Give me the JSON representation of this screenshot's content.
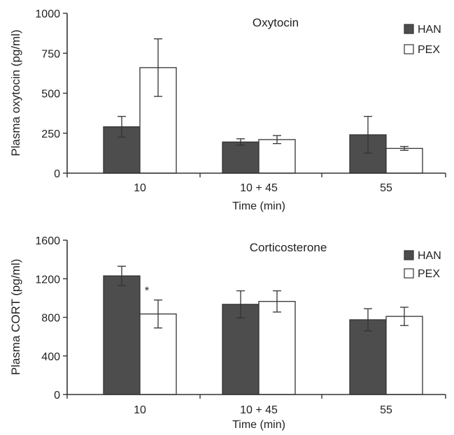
{
  "chart_data": [
    {
      "type": "bar",
      "title": "Oxytocin",
      "xlabel": "Time (min)",
      "ylabel": "Plasma oxytocin (pg/ml)",
      "categories": [
        "10",
        "10 + 45",
        "55"
      ],
      "yticks": [
        "0",
        "250",
        "500",
        "750",
        "1000"
      ],
      "ylim": [
        0,
        1000
      ],
      "series": [
        {
          "name": "HAN",
          "color": "#4d4d4d",
          "values": [
            290,
            195,
            240
          ],
          "errors": [
            65,
            20,
            115
          ]
        },
        {
          "name": "PEX",
          "color": "#ffffff",
          "values": [
            660,
            210,
            155
          ],
          "errors": [
            180,
            25,
            12
          ]
        }
      ],
      "annotations": [],
      "legend": "top-right",
      "grid": false
    },
    {
      "type": "bar",
      "title": "Corticosterone",
      "xlabel": "Time (min)",
      "ylabel": "Plasma CORT (pg/ml)",
      "categories": [
        "10",
        "10 + 45",
        "55"
      ],
      "yticks": [
        "0",
        "400",
        "800",
        "1200",
        "1600"
      ],
      "ylim": [
        0,
        1600
      ],
      "series": [
        {
          "name": "HAN",
          "color": "#4d4d4d",
          "values": [
            1230,
            935,
            775
          ],
          "errors": [
            100,
            140,
            115
          ]
        },
        {
          "name": "PEX",
          "color": "#ffffff",
          "values": [
            835,
            965,
            810
          ],
          "errors": [
            145,
            110,
            95
          ]
        }
      ],
      "annotations": [
        {
          "text": "*",
          "category": 0,
          "series": 1
        }
      ],
      "legend": "top-right",
      "grid": false
    }
  ]
}
